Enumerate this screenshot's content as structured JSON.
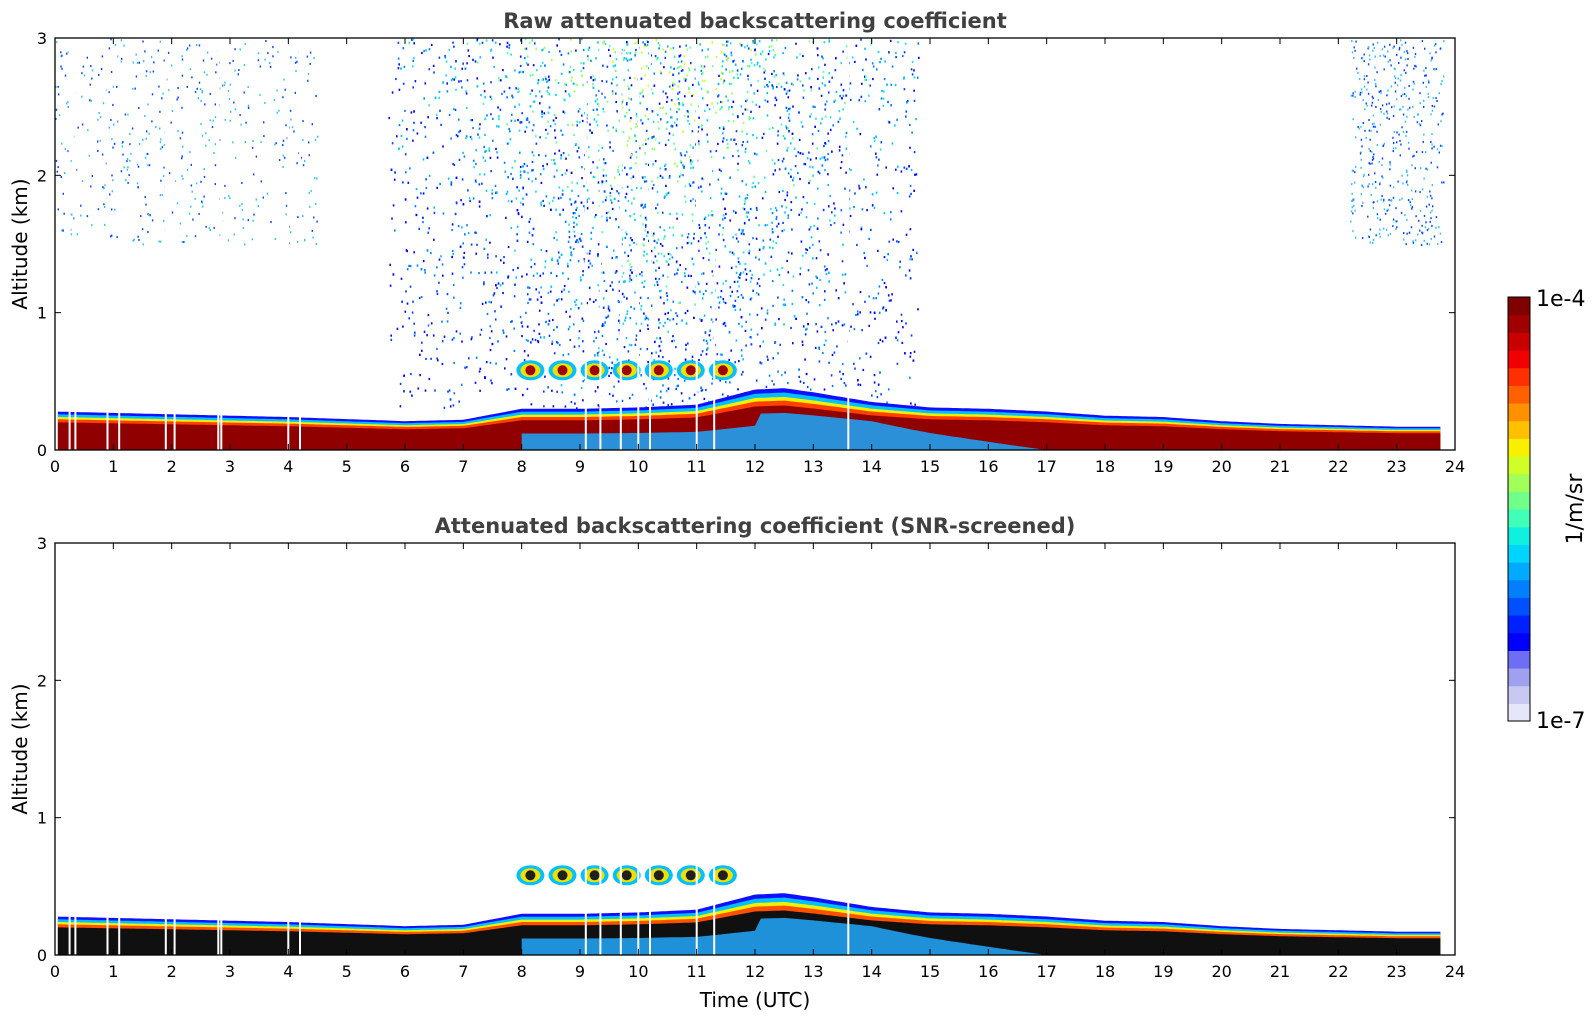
{
  "chart_data": [
    {
      "type": "heatmap",
      "title": "Raw attenuated backscattering coefficient",
      "xlabel": "",
      "ylabel": "Altitude (km)",
      "xlim": [
        0,
        24
      ],
      "ylim": [
        0,
        3
      ],
      "x_ticks": [
        "0",
        "1",
        "2",
        "3",
        "4",
        "5",
        "6",
        "7",
        "8",
        "9",
        "10",
        "11",
        "12",
        "13",
        "14",
        "15",
        "16",
        "17",
        "18",
        "19",
        "20",
        "21",
        "22",
        "23",
        "24"
      ],
      "y_ticks": [
        "0",
        "1",
        "2",
        "3"
      ],
      "grid": false,
      "colormap": "jet",
      "value_range": [
        "1e-7",
        "1e-4"
      ],
      "layers": {
        "boundary_layer_top_km": {
          "time_utc": [
            0,
            2,
            4,
            6,
            7,
            8,
            9,
            10,
            11,
            12,
            12.5,
            13,
            14,
            15,
            16,
            17,
            18,
            19,
            20,
            21,
            22,
            23,
            23.8
          ],
          "altitude": [
            0.28,
            0.26,
            0.24,
            0.21,
            0.22,
            0.3,
            0.3,
            0.31,
            0.33,
            0.44,
            0.45,
            0.42,
            0.35,
            0.31,
            0.3,
            0.28,
            0.25,
            0.24,
            0.21,
            0.19,
            0.18,
            0.17,
            0.17
          ]
        },
        "elevated_aerosol_layer": {
          "time_range_utc": [
            8.0,
            12.0
          ],
          "altitude_km": 0.58
        },
        "scattered_signal_region": {
          "time_range_utc": [
            5.7,
            14.8
          ],
          "altitude_range_km": [
            0.3,
            3.0
          ]
        },
        "data_gaps_utc": [
          0.25,
          0.35,
          0.9,
          1.1,
          1.9,
          2.05,
          2.8,
          2.85,
          4.0,
          4.2,
          9.1,
          9.35,
          9.7,
          10.0,
          10.2,
          11.0,
          11.3,
          13.6
        ]
      }
    },
    {
      "type": "heatmap",
      "title": "Attenuated backscattering coefficient (SNR-screened)",
      "xlabel": "Time (UTC)",
      "ylabel": "Altitude (km)",
      "xlim": [
        0,
        24
      ],
      "ylim": [
        0,
        3
      ],
      "x_ticks": [
        "0",
        "1",
        "2",
        "3",
        "4",
        "5",
        "6",
        "7",
        "8",
        "9",
        "10",
        "11",
        "12",
        "13",
        "14",
        "15",
        "16",
        "17",
        "18",
        "19",
        "20",
        "21",
        "22",
        "23",
        "24"
      ],
      "y_ticks": [
        "0",
        "1",
        "2",
        "3"
      ],
      "grid": false,
      "colormap": "jet",
      "value_range": [
        "1e-7",
        "1e-4"
      ],
      "layers": {
        "boundary_layer_top_km": {
          "time_utc": [
            0,
            2,
            4,
            6,
            7,
            8,
            9,
            10,
            11,
            12,
            12.5,
            13,
            14,
            15,
            16,
            17,
            18,
            19,
            20,
            21,
            22,
            23,
            23.8
          ],
          "altitude": [
            0.28,
            0.26,
            0.24,
            0.21,
            0.22,
            0.3,
            0.3,
            0.31,
            0.33,
            0.44,
            0.45,
            0.42,
            0.35,
            0.31,
            0.3,
            0.28,
            0.25,
            0.24,
            0.21,
            0.19,
            0.18,
            0.17,
            0.17
          ]
        },
        "elevated_aerosol_layer": {
          "time_range_utc": [
            8.0,
            12.0
          ],
          "altitude_km": 0.58
        },
        "scattered_signal_region": {
          "time_range_utc": [],
          "altitude_range_km": []
        },
        "data_gaps_utc": [
          0.25,
          0.35,
          0.9,
          1.1,
          1.9,
          2.05,
          2.8,
          2.85,
          4.0,
          4.2,
          9.1,
          9.35,
          9.7,
          10.0,
          10.2,
          11.0,
          11.3,
          13.6
        ]
      }
    }
  ],
  "colorbar": {
    "label": "1/m/sr",
    "max_label": "1e-4",
    "min_label": "1e-7",
    "colors": [
      "#e6e6fa",
      "#c8c8f0",
      "#a0a0f0",
      "#6e6ef5",
      "#0000ff",
      "#0020ff",
      "#0050ff",
      "#0080ff",
      "#00aaff",
      "#00d4ff",
      "#10f0e0",
      "#40ffb8",
      "#70ff88",
      "#a0ff58",
      "#d0ff28",
      "#f8f000",
      "#ffc000",
      "#ff9000",
      "#ff6000",
      "#ff3000",
      "#f00000",
      "#c80000",
      "#a00000",
      "#800000"
    ]
  }
}
